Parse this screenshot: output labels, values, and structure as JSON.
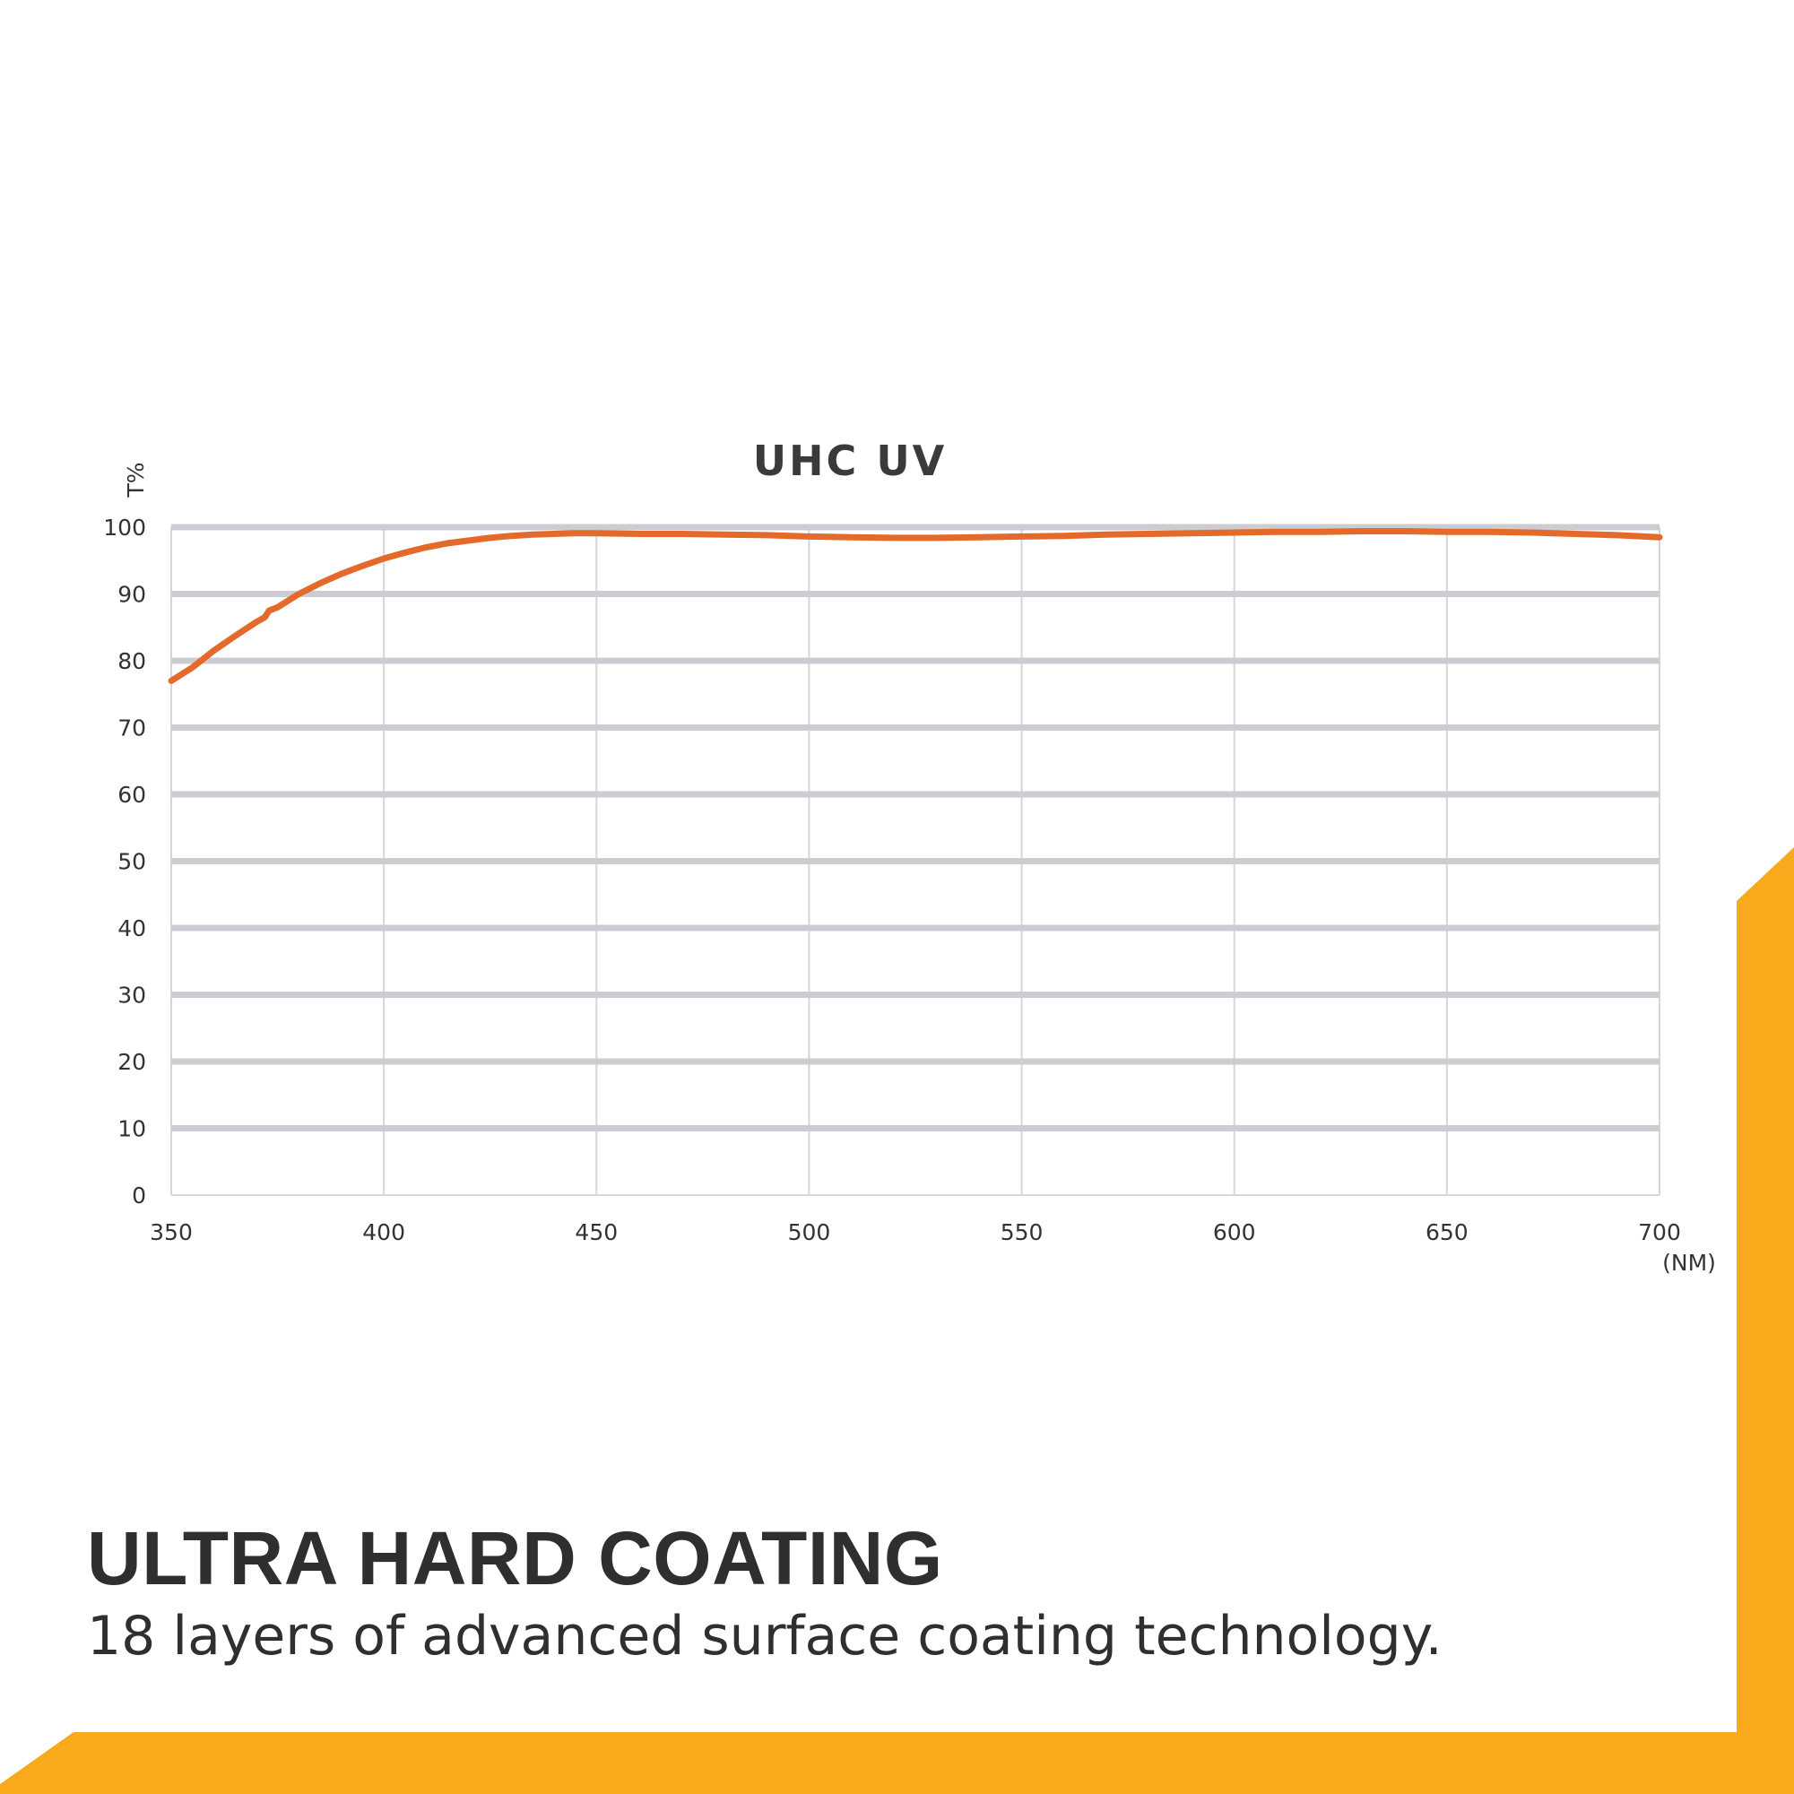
{
  "colors": {
    "accent": "#F8A91C",
    "curve": "#E36A2B",
    "grid_h": "#CCCDD2",
    "grid_v": "#D6D6D6",
    "text": "#2F2F31"
  },
  "chart_data": {
    "type": "line",
    "title": "UHC UV",
    "ylabel": "T%",
    "xlabel": "(NM)",
    "xlim": [
      350,
      700
    ],
    "ylim": [
      0,
      100
    ],
    "x_ticks": [
      350,
      400,
      450,
      500,
      550,
      600,
      650,
      700
    ],
    "y_ticks": [
      0,
      10,
      20,
      30,
      40,
      50,
      60,
      70,
      80,
      90,
      100
    ],
    "grid": true,
    "series": [
      {
        "x": [
          350,
          355,
          360,
          365,
          370,
          372,
          373,
          375,
          380,
          385,
          390,
          395,
          400,
          405,
          410,
          415,
          420,
          425,
          430,
          435,
          440,
          445,
          450,
          460,
          470,
          480,
          490,
          500,
          510,
          520,
          530,
          540,
          550,
          560,
          570,
          580,
          590,
          600,
          610,
          620,
          630,
          640,
          650,
          660,
          670,
          680,
          690,
          700
        ],
        "y": [
          77.0,
          79.0,
          81.5,
          83.7,
          85.8,
          86.5,
          87.5,
          88.0,
          90.0,
          91.6,
          93.0,
          94.2,
          95.3,
          96.2,
          97.0,
          97.6,
          98.0,
          98.4,
          98.7,
          98.9,
          99.0,
          99.1,
          99.1,
          99.0,
          99.0,
          98.9,
          98.8,
          98.6,
          98.5,
          98.4,
          98.4,
          98.5,
          98.6,
          98.7,
          98.9,
          99.0,
          99.1,
          99.2,
          99.3,
          99.3,
          99.4,
          99.4,
          99.3,
          99.3,
          99.2,
          99.0,
          98.8,
          98.5
        ]
      }
    ]
  },
  "caption": {
    "headline": "ULTRA HARD COATING",
    "subline": "18 layers of advanced surface coating technology."
  }
}
